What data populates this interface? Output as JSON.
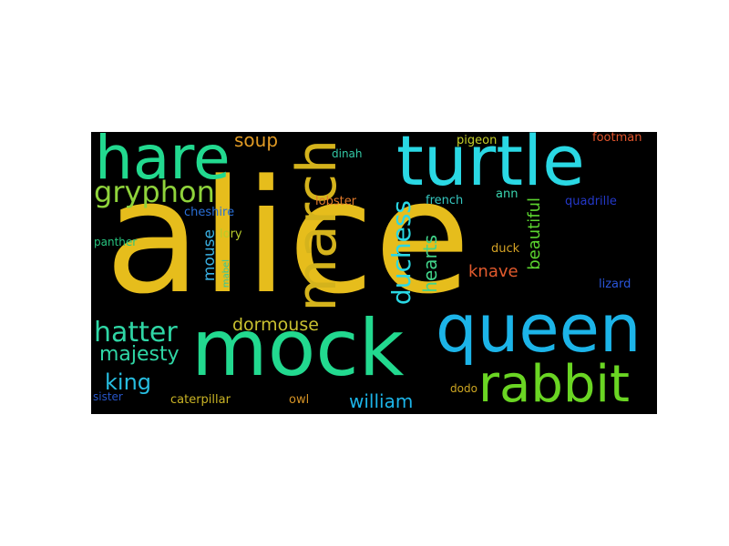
{
  "words": [
    {
      "text": "alice",
      "color": "#e6bd1c"
    },
    {
      "text": "mock",
      "color": "#22d98f"
    },
    {
      "text": "turtle",
      "color": "#2ad8e4"
    },
    {
      "text": "queen",
      "color": "#1cb4e8"
    },
    {
      "text": "rabbit",
      "color": "#6ad523"
    },
    {
      "text": "hare",
      "color": "#22d98f"
    },
    {
      "text": "march",
      "color": "#d4b31c"
    },
    {
      "text": "gryphon",
      "color": "#8fd33b"
    },
    {
      "text": "duchess",
      "color": "#2ad8e4"
    },
    {
      "text": "hatter",
      "color": "#2fd6a5"
    },
    {
      "text": "majesty",
      "color": "#2fd6a5"
    },
    {
      "text": "dormouse",
      "color": "#c9c130"
    },
    {
      "text": "king",
      "color": "#27bde0"
    },
    {
      "text": "william",
      "color": "#1cb4e8"
    },
    {
      "text": "hearts",
      "color": "#41d48a"
    },
    {
      "text": "knave",
      "color": "#e25a2d"
    },
    {
      "text": "beautiful",
      "color": "#5bd32f"
    },
    {
      "text": "soup",
      "color": "#e09a24"
    },
    {
      "text": "mouse",
      "color": "#3ab0e3"
    },
    {
      "text": "cheshire",
      "color": "#2a6fd6"
    },
    {
      "text": "lobster",
      "color": "#e27a2a"
    },
    {
      "text": "dinah",
      "color": "#33c9a6"
    },
    {
      "text": "pigeon",
      "color": "#c5d02a"
    },
    {
      "text": "footman",
      "color": "#e0542c"
    },
    {
      "text": "french",
      "color": "#36c7c0"
    },
    {
      "text": "ann",
      "color": "#3ad6b0"
    },
    {
      "text": "quadrille",
      "color": "#2438c9"
    },
    {
      "text": "lory",
      "color": "#b7cc2c"
    },
    {
      "text": "panther",
      "color": "#27c47f"
    },
    {
      "text": "mabel",
      "color": "#2dc7a0"
    },
    {
      "text": "duck",
      "color": "#d4a225"
    },
    {
      "text": "lizard",
      "color": "#2a55d9"
    },
    {
      "text": "caterpillar",
      "color": "#c9b325"
    },
    {
      "text": "owl",
      "color": "#d49225"
    },
    {
      "text": "dodo",
      "color": "#cda622"
    },
    {
      "text": "sister",
      "color": "#2755c7"
    }
  ]
}
